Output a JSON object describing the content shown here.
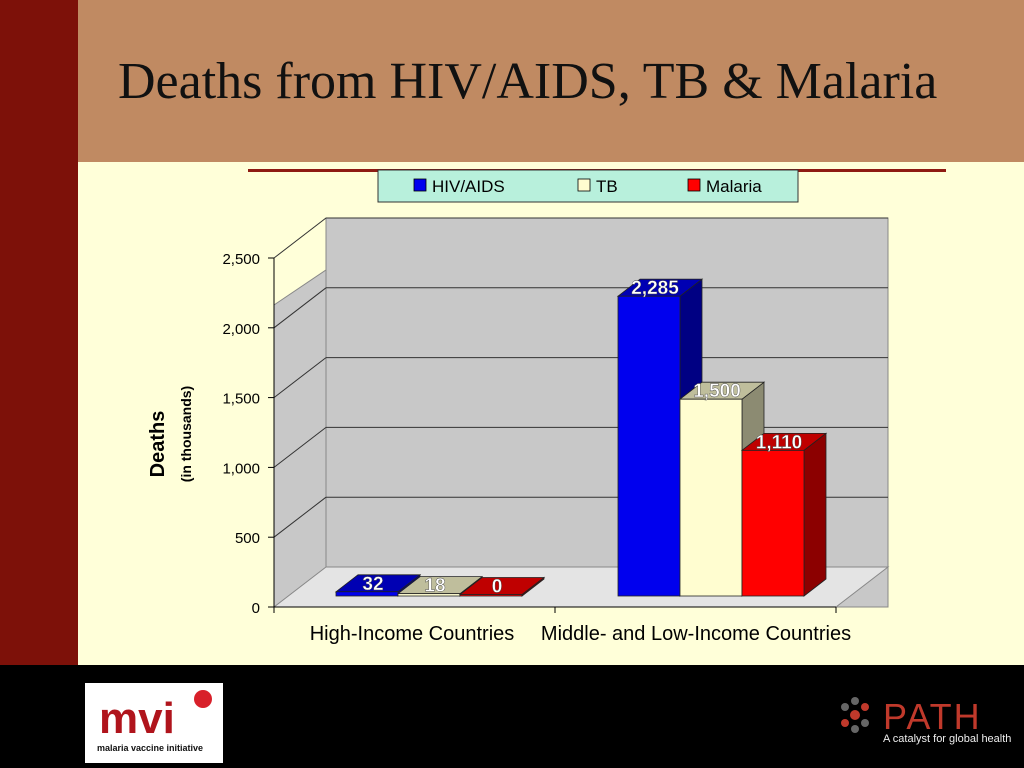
{
  "slide": {
    "title": "Deaths from HIV/AIDS, TB & Malaria",
    "colors": {
      "left_bar": "#7d1109",
      "header": "#c08a62",
      "background": "#ffffd9",
      "footer": "#000000"
    }
  },
  "chart_data": {
    "type": "bar",
    "title": "",
    "categories": [
      "High-Income Countries",
      "Middle- and Low-Income Countries"
    ],
    "series": [
      {
        "name": "HIV/AIDS",
        "values": [
          32,
          2285
        ],
        "labels": [
          "32",
          "2,285"
        ],
        "color": "#0000ee"
      },
      {
        "name": "TB",
        "values": [
          18,
          1500
        ],
        "labels": [
          "18",
          "1,500"
        ],
        "color": "#fffdd0"
      },
      {
        "name": "Malaria",
        "values": [
          0,
          1110
        ],
        "labels": [
          "0",
          "1,110"
        ],
        "color": "#ff0000"
      }
    ],
    "ylabel": "Deaths",
    "ylabel_sub": "(in thousands)",
    "ylim": [
      0,
      2500
    ],
    "yticks": [
      0,
      500,
      1000,
      1500,
      2000,
      2500
    ],
    "ytick_labels": [
      "0",
      "500",
      "1,000",
      "1,500",
      "2,000",
      "2,500"
    ],
    "grid": true,
    "legend_position": "top"
  },
  "footer": {
    "left_logo_text": "malaria vaccine initiative",
    "right_logo_text": "A catalyst for global health"
  }
}
